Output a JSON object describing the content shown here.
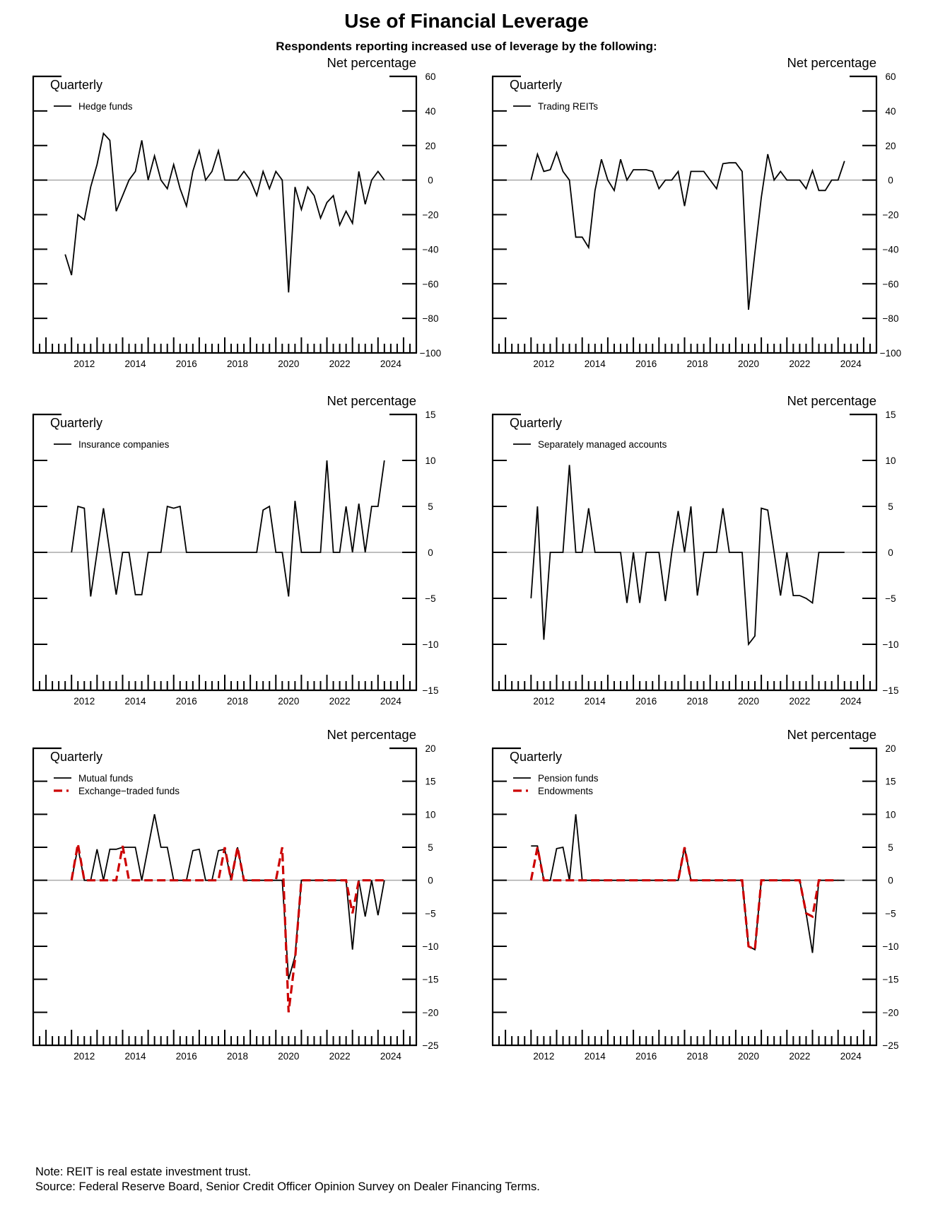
{
  "header": {
    "title": "Use of Financial Leverage",
    "subtitle": "Respondents reporting increased use of leverage by the following:"
  },
  "footer": {
    "note": "Note:  REIT is real estate investment trust.",
    "source": "Source:  Federal Reserve Board, Senior Credit Officer Opinion Survey on Dealer Financing Terms."
  },
  "colors": {
    "primary": "#000000",
    "secondary": "#cc0000",
    "zero_line": "#aaaaaa"
  },
  "chart_data": [
    {
      "type": "line",
      "frequency_label": "Quarterly",
      "ylabel": "Net percentage",
      "xlim": [
        2010.5,
        2025.5
      ],
      "ylim": [
        -100,
        60
      ],
      "yticks": [
        60,
        40,
        20,
        0,
        -20,
        -40,
        -60,
        -80,
        -100
      ],
      "xtick_labels": [
        "2012",
        "2014",
        "2016",
        "2018",
        "2020",
        "2022",
        "2024"
      ],
      "series": [
        {
          "name": "Hedge funds",
          "style": "solid",
          "start": 2011.75,
          "step": 0.25,
          "values": [
            -43,
            -55,
            -20,
            -23,
            -4,
            9,
            27,
            23,
            -18,
            -9,
            0,
            5,
            23,
            0,
            14,
            0,
            -5,
            9,
            -5,
            -15,
            5,
            17,
            0,
            5,
            17,
            0,
            0,
            0,
            5,
            0,
            -9,
            5,
            -5,
            5,
            0,
            -65,
            -4,
            -17,
            -4,
            -9,
            -22,
            -13,
            -9,
            -26,
            -18,
            -25,
            5,
            -14,
            0,
            5,
            0
          ]
        }
      ]
    },
    {
      "type": "line",
      "frequency_label": "Quarterly",
      "ylabel": "Net percentage",
      "xlim": [
        2010.5,
        2025.5
      ],
      "ylim": [
        -100,
        60
      ],
      "yticks": [
        60,
        40,
        20,
        0,
        -20,
        -40,
        -60,
        -80,
        -100
      ],
      "xtick_labels": [
        "2012",
        "2014",
        "2016",
        "2018",
        "2020",
        "2022",
        "2024"
      ],
      "series": [
        {
          "name": "Trading REITs",
          "style": "solid",
          "start": 2012.0,
          "step": 0.25,
          "values": [
            0,
            15,
            5,
            6,
            16,
            5,
            0,
            -33,
            -33,
            -39,
            -6,
            12,
            0,
            -6,
            12,
            0,
            6,
            6,
            6,
            5,
            -5,
            0,
            0,
            5,
            -15,
            5,
            5,
            5,
            0,
            -5,
            9.5,
            10,
            10,
            5,
            -75,
            -42,
            -10,
            15,
            0,
            5,
            0,
            0,
            0,
            -5,
            5.5,
            -6,
            -6,
            0,
            0,
            11
          ]
        }
      ]
    },
    {
      "type": "line",
      "frequency_label": "Quarterly",
      "ylabel": "Net percentage",
      "xlim": [
        2010.5,
        2025.5
      ],
      "ylim": [
        -15,
        15
      ],
      "yticks": [
        15,
        10,
        5,
        0,
        -5,
        -10,
        -15
      ],
      "xtick_labels": [
        "2012",
        "2014",
        "2016",
        "2018",
        "2020",
        "2022",
        "2024"
      ],
      "series": [
        {
          "name": "Insurance companies",
          "style": "solid",
          "start": 2012.0,
          "step": 0.25,
          "values": [
            0,
            5,
            4.8,
            -4.8,
            0,
            4.8,
            0,
            -4.6,
            0,
            0,
            -4.6,
            -4.6,
            0,
            0,
            0,
            5,
            4.8,
            5,
            0,
            0,
            0,
            0,
            0,
            0,
            0,
            0,
            0,
            0,
            0,
            0,
            4.6,
            5,
            0,
            0,
            -4.8,
            5.6,
            0,
            0,
            0,
            0,
            10,
            0,
            0,
            5,
            0,
            5.3,
            0,
            5,
            5,
            10
          ]
        }
      ]
    },
    {
      "type": "line",
      "frequency_label": "Quarterly",
      "ylabel": "Net percentage",
      "xlim": [
        2010.5,
        2025.5
      ],
      "ylim": [
        -15,
        15
      ],
      "yticks": [
        15,
        10,
        5,
        0,
        -5,
        -10,
        -15
      ],
      "xtick_labels": [
        "2012",
        "2014",
        "2016",
        "2018",
        "2020",
        "2022",
        "2024"
      ],
      "series": [
        {
          "name": "Separately managed accounts",
          "style": "solid",
          "start": 2012.0,
          "step": 0.25,
          "values": [
            -5,
            5,
            -9.5,
            0,
            0,
            0,
            9.5,
            0,
            0,
            4.8,
            0,
            0,
            0,
            0,
            0,
            -5.5,
            0,
            -5.5,
            0,
            0,
            0,
            -5.3,
            0,
            4.5,
            0,
            5,
            -4.7,
            0,
            0,
            0,
            4.8,
            0,
            0,
            0,
            -10,
            -9.1,
            4.8,
            4.6,
            0,
            -4.7,
            0,
            -4.7,
            -4.7,
            -5,
            -5.5,
            0,
            0,
            0,
            0,
            0
          ]
        }
      ]
    },
    {
      "type": "line",
      "frequency_label": "Quarterly",
      "ylabel": "Net percentage",
      "xlim": [
        2010.5,
        2025.5
      ],
      "ylim": [
        -25,
        20
      ],
      "yticks": [
        20,
        15,
        10,
        5,
        0,
        -5,
        -10,
        -15,
        -20,
        -25
      ],
      "xtick_labels": [
        "2012",
        "2014",
        "2016",
        "2018",
        "2020",
        "2022",
        "2024"
      ],
      "series": [
        {
          "name": "Mutual funds",
          "style": "solid",
          "start": 2012.0,
          "step": 0.25,
          "values": [
            0,
            5,
            0,
            0,
            4.7,
            0,
            4.7,
            4.7,
            5,
            5,
            5,
            0,
            5,
            10,
            5,
            5,
            0,
            0,
            0,
            4.5,
            4.7,
            0,
            0,
            4.5,
            4.7,
            0,
            5,
            0,
            0,
            0,
            0,
            0,
            0,
            0,
            -15,
            -11.5,
            0,
            0,
            0,
            0,
            0,
            0,
            0,
            0,
            -10.5,
            0,
            -5.5,
            0,
            -5.3,
            0
          ]
        },
        {
          "name": "Exchange−traded funds",
          "style": "dashed",
          "start": 2012.0,
          "step": 0.25,
          "values": [
            0,
            5.5,
            0,
            0,
            0,
            0,
            0,
            0,
            5.2,
            0,
            0,
            0,
            0,
            0,
            0,
            0,
            0,
            0,
            0,
            0,
            0,
            0,
            0,
            0,
            5,
            0,
            5,
            0,
            0,
            0,
            0,
            0,
            0,
            5,
            -20,
            -12,
            0,
            0,
            0,
            0,
            0,
            0,
            0,
            0,
            -5,
            0,
            0,
            0,
            0,
            0
          ]
        }
      ]
    },
    {
      "type": "line",
      "frequency_label": "Quarterly",
      "ylabel": "Net percentage",
      "xlim": [
        2010.5,
        2025.5
      ],
      "ylim": [
        -25,
        20
      ],
      "yticks": [
        20,
        15,
        10,
        5,
        0,
        -5,
        -10,
        -15,
        -20,
        -25
      ],
      "xtick_labels": [
        "2012",
        "2014",
        "2016",
        "2018",
        "2020",
        "2022",
        "2024"
      ],
      "series": [
        {
          "name": "Pension funds",
          "style": "solid",
          "start": 2012.0,
          "step": 0.25,
          "values": [
            5.2,
            5.2,
            0,
            0,
            4.8,
            5,
            0,
            10,
            0,
            0,
            0,
            0,
            0,
            0,
            0,
            0,
            0,
            0,
            0,
            0,
            0,
            0,
            0,
            0,
            5,
            0,
            0,
            0,
            0,
            0,
            0,
            0,
            0,
            0,
            -10,
            -10.5,
            0,
            0,
            0,
            0,
            0,
            0,
            0,
            -5,
            -11,
            0,
            0,
            0,
            0,
            0
          ]
        },
        {
          "name": "Endowments",
          "style": "dashed",
          "start": 2012.0,
          "step": 0.25,
          "values": [
            0,
            5,
            0,
            0,
            0,
            0,
            0,
            0,
            0,
            0,
            0,
            0,
            0,
            0,
            0,
            0,
            0,
            0,
            0,
            0,
            0,
            0,
            0,
            0,
            5,
            0,
            0,
            0,
            0,
            0,
            0,
            0,
            0,
            0,
            -10,
            -10.5,
            0,
            0,
            0,
            0,
            0,
            0,
            0,
            -5,
            -5.5,
            0,
            0,
            0,
            0
          ]
        }
      ]
    }
  ]
}
